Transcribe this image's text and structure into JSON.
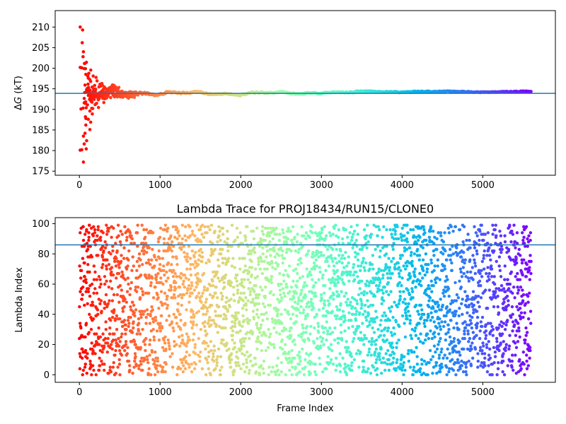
{
  "chart_data": [
    {
      "type": "scatter",
      "title": "",
      "xlabel": "",
      "ylabel": "ΔG (kT)",
      "ylabel_symbol": "Δ",
      "ylabel_var": "G",
      "ylabel_unit": " (kT)",
      "xlim": [
        -300,
        5900
      ],
      "ylim": [
        174,
        214
      ],
      "xticks": [
        0,
        1000,
        2000,
        3000,
        4000,
        5000
      ],
      "yticks": [
        175,
        180,
        185,
        190,
        195,
        200,
        205,
        210
      ],
      "hline": 193.9,
      "hline_color": "#1f77b4",
      "colormap": "rainbow",
      "x_max": 5600,
      "seed": 7,
      "early_points": [
        [
          10,
          210
        ],
        [
          40,
          209.3
        ],
        [
          35,
          206.2
        ],
        [
          50,
          204
        ],
        [
          45,
          202.8
        ],
        [
          10,
          200.2
        ],
        [
          30,
          200.1
        ],
        [
          60,
          199.9
        ],
        [
          80,
          198.5
        ],
        [
          110,
          197.6
        ],
        [
          140,
          196.8
        ],
        [
          70,
          195.9
        ],
        [
          90,
          194.8
        ],
        [
          120,
          193.6
        ],
        [
          150,
          192.4
        ],
        [
          60,
          191.6
        ],
        [
          100,
          191.1
        ],
        [
          20,
          190.1
        ],
        [
          45,
          190.3
        ],
        [
          130,
          189.6
        ],
        [
          160,
          188.9
        ],
        [
          75,
          188.2
        ],
        [
          110,
          187.6
        ],
        [
          140,
          186.9
        ],
        [
          80,
          186.2
        ],
        [
          130,
          185.1
        ],
        [
          70,
          184.2
        ],
        [
          50,
          183.5
        ],
        [
          90,
          182.4
        ],
        [
          60,
          181.6
        ],
        [
          10,
          180.1
        ],
        [
          30,
          180.2
        ],
        [
          85,
          180.4
        ],
        [
          50,
          177.2
        ]
      ]
    },
    {
      "type": "scatter",
      "title": "Lambda Trace for PROJ18434/RUN15/CLONE0",
      "xlabel": "Frame Index",
      "ylabel": "Lambda Index",
      "xlim": [
        -300,
        5900
      ],
      "ylim": [
        -5,
        104
      ],
      "xticks": [
        0,
        1000,
        2000,
        3000,
        4000,
        5000
      ],
      "yticks": [
        0,
        20,
        40,
        60,
        80,
        100
      ],
      "hline": 86,
      "hline_color": "#1f77b4",
      "colormap": "rainbow",
      "x_max": 5600,
      "y_range": [
        0,
        99
      ],
      "n_points": 5600,
      "seed": 13
    }
  ]
}
